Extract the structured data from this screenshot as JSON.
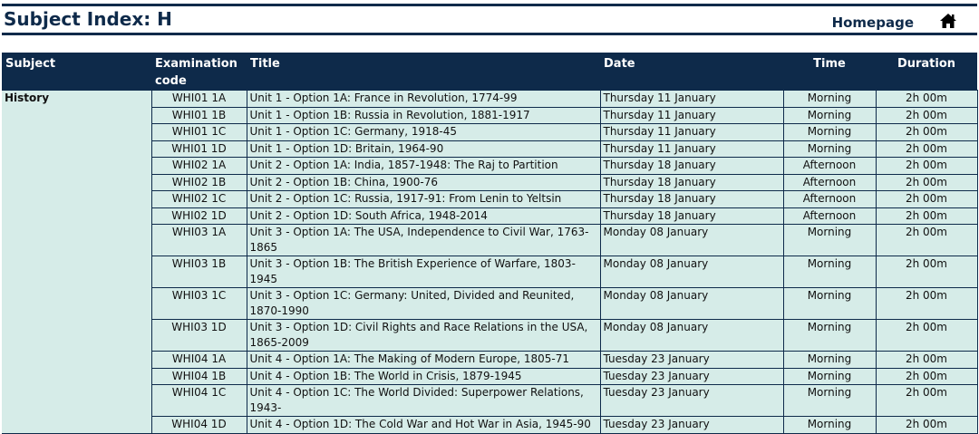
{
  "header": {
    "title": "Subject Index: H",
    "homepage_label": "Homepage",
    "home_icon": "home-icon"
  },
  "table": {
    "columns": [
      "Subject",
      "Examination code",
      "Title",
      "Date",
      "Time",
      "Duration"
    ],
    "subject": "History",
    "rows": [
      {
        "code": "WHI01 1A",
        "title": "Unit 1 - Option 1A: France in Revolution, 1774-99",
        "date": "Thursday 11 January",
        "time": "Morning",
        "duration": "2h 00m"
      },
      {
        "code": "WHI01 1B",
        "title": "Unit 1 - Option 1B: Russia in Revolution, 1881-1917",
        "date": "Thursday 11 January",
        "time": "Morning",
        "duration": "2h 00m"
      },
      {
        "code": "WHI01 1C",
        "title": "Unit 1 - Option 1C: Germany, 1918-45",
        "date": "Thursday 11 January",
        "time": "Morning",
        "duration": "2h 00m"
      },
      {
        "code": "WHI01 1D",
        "title": "Unit 1 - Option 1D: Britain, 1964-90",
        "date": "Thursday 11 January",
        "time": "Morning",
        "duration": "2h 00m"
      },
      {
        "code": "WHI02 1A",
        "title": "Unit 2 - Option 1A: India, 1857-1948: The Raj to Partition",
        "date": "Thursday 18 January",
        "time": "Afternoon",
        "duration": "2h 00m"
      },
      {
        "code": "WHI02 1B",
        "title": "Unit 2 - Option 1B: China, 1900-76",
        "date": "Thursday 18 January",
        "time": "Afternoon",
        "duration": "2h 00m"
      },
      {
        "code": "WHI02 1C",
        "title": "Unit 2 - Option 1C: Russia, 1917-91: From Lenin to Yeltsin",
        "date": "Thursday 18 January",
        "time": "Afternoon",
        "duration": "2h 00m"
      },
      {
        "code": "WHI02 1D",
        "title": "Unit 2 - Option 1D: South Africa, 1948-2014",
        "date": "Thursday 18 January",
        "time": "Afternoon",
        "duration": "2h 00m"
      },
      {
        "code": "WHI03 1A",
        "title": "Unit 3 - Option 1A: The USA, Independence to Civil War, 1763-1865",
        "date": "Monday 08 January",
        "time": "Morning",
        "duration": "2h 00m"
      },
      {
        "code": "WHI03 1B",
        "title": "Unit 3 - Option 1B: The British Experience of Warfare, 1803-1945",
        "date": "Monday 08 January",
        "time": "Morning",
        "duration": "2h 00m"
      },
      {
        "code": "WHI03 1C",
        "title": "Unit 3 - Option 1C: Germany: United, Divided and Reunited, 1870-1990",
        "date": "Monday 08 January",
        "time": "Morning",
        "duration": "2h 00m"
      },
      {
        "code": "WHI03 1D",
        "title": "Unit 3 - Option 1D: Civil Rights and Race Relations in the USA, 1865-2009",
        "date": "Monday 08 January",
        "time": "Morning",
        "duration": "2h 00m"
      },
      {
        "code": "WHI04 1A",
        "title": "Unit 4 - Option 1A: The Making of Modern Europe, 1805-71",
        "date": "Tuesday 23 January",
        "time": "Morning",
        "duration": "2h 00m"
      },
      {
        "code": "WHI04 1B",
        "title": "Unit 4 - Option 1B: The World in Crisis, 1879-1945",
        "date": "Tuesday 23 January",
        "time": "Morning",
        "duration": "2h 00m"
      },
      {
        "code": "WHI04 1C",
        "title": "Unit 4 - Option 1C: The World Divided: Superpower Relations, 1943-",
        "date": "Tuesday 23 January",
        "time": "Morning",
        "duration": "2h 00m"
      },
      {
        "code": "WHI04 1D",
        "title": "Unit 4 - Option 1D: The Cold War and Hot War in Asia, 1945-90",
        "date": "Tuesday 23 January",
        "time": "Morning",
        "duration": "2h 00m"
      }
    ]
  }
}
